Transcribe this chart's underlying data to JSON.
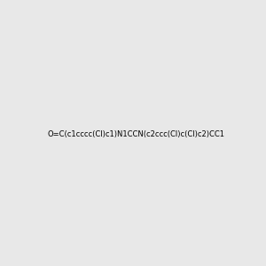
{
  "smiles": "O=C(c1cccc(Cl)c1)N1CCN(c2ccc(Cl)c(Cl)c2)CC1",
  "background_color": "#e8e8e8",
  "figsize": [
    3.0,
    3.0
  ],
  "dpi": 100,
  "atom_colors": {
    "N": [
      0,
      0,
      1
    ],
    "O": [
      1,
      0,
      0
    ],
    "Cl": [
      0,
      0.7,
      0
    ],
    "C": [
      0,
      0,
      0
    ]
  }
}
